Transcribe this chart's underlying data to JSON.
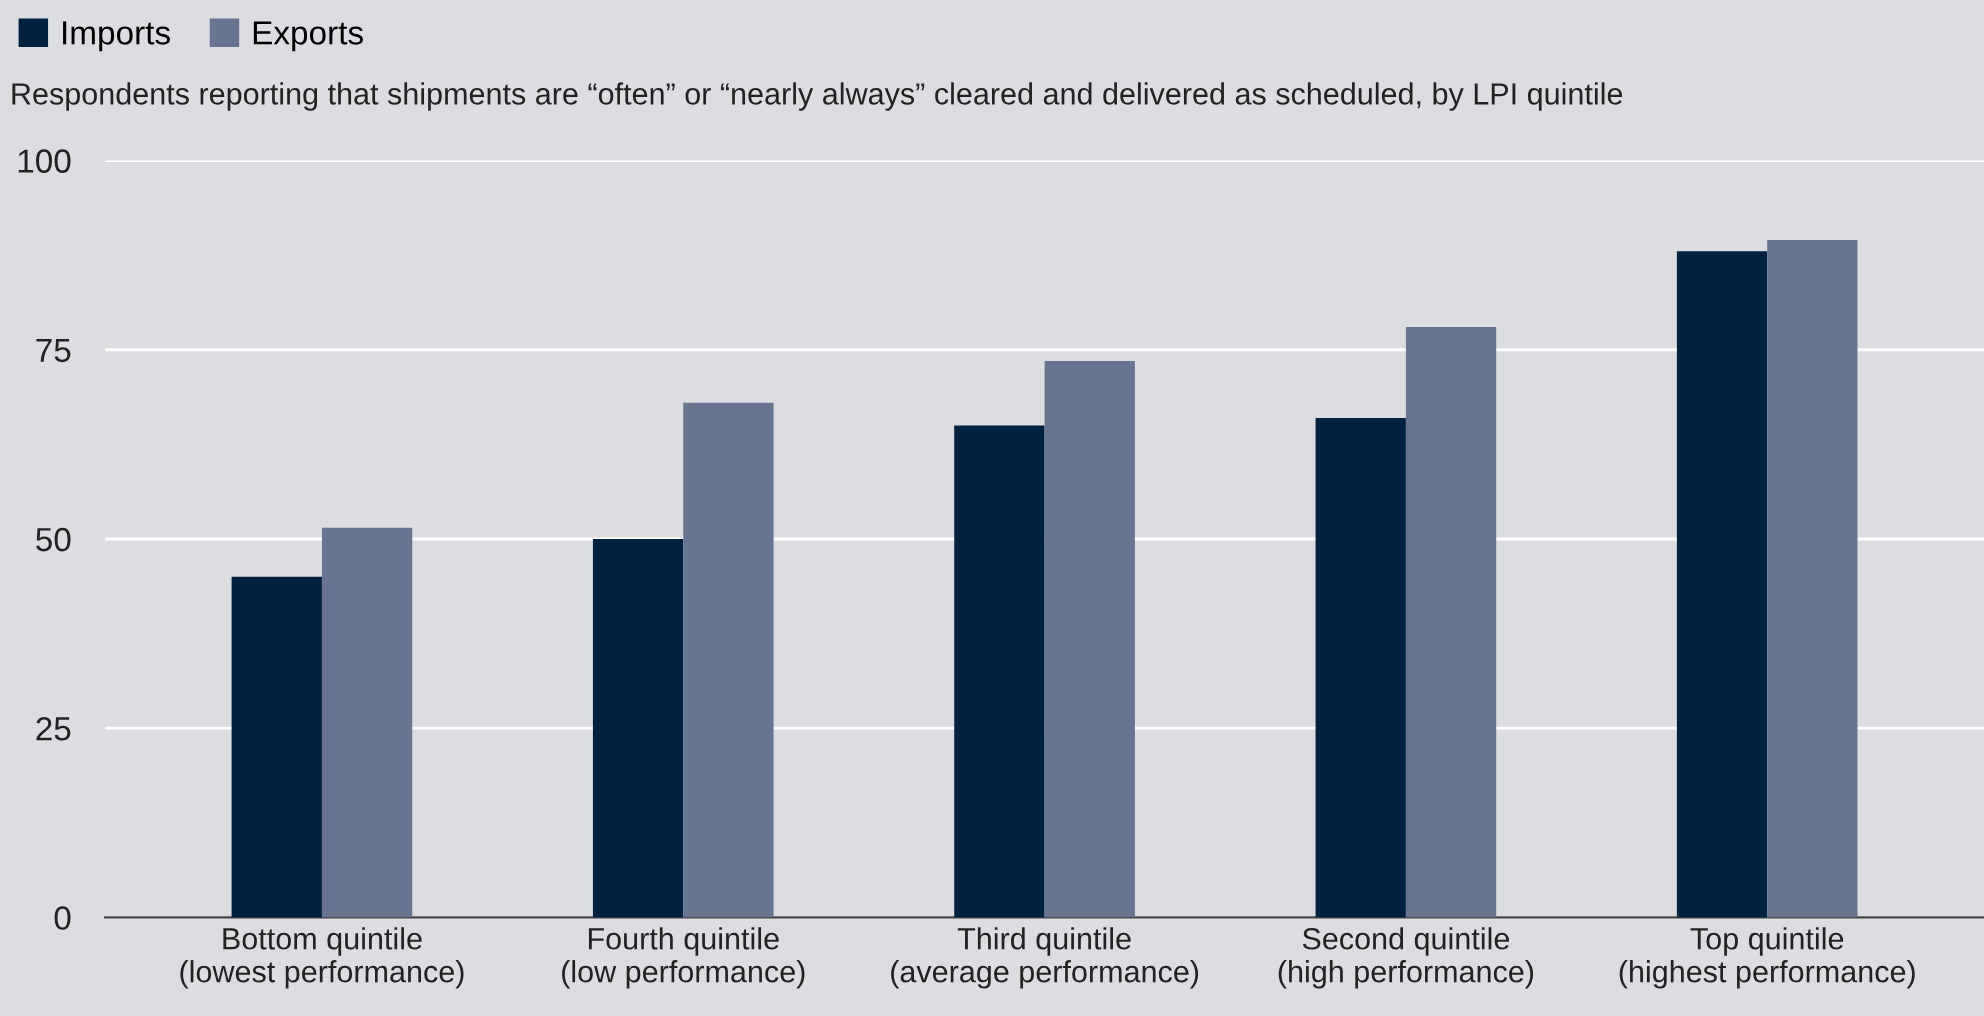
{
  "chart_data": {
    "type": "bar",
    "subtitle": "Respondents reporting that shipments are “often” or “nearly always” cleared and delivered as scheduled, by LPI quintile",
    "categories": [
      "Bottom quintile\n(lowest performance)",
      "Fourth quintile\n(low performance)",
      "Third quintile\n(average performance)",
      "Second quintile\n(high performance)",
      "Top quintile\n(highest performance)"
    ],
    "series": [
      {
        "name": "Imports",
        "color": "#00223f",
        "values": [
          45,
          50,
          65,
          66,
          88
        ]
      },
      {
        "name": "Exports",
        "color": "#687590",
        "values": [
          51.5,
          68,
          73.5,
          78,
          89.5
        ]
      }
    ],
    "ylim": [
      0,
      100
    ],
    "yticks": [
      0,
      25,
      50,
      75,
      100
    ],
    "grid": "y",
    "legend": "top left"
  }
}
